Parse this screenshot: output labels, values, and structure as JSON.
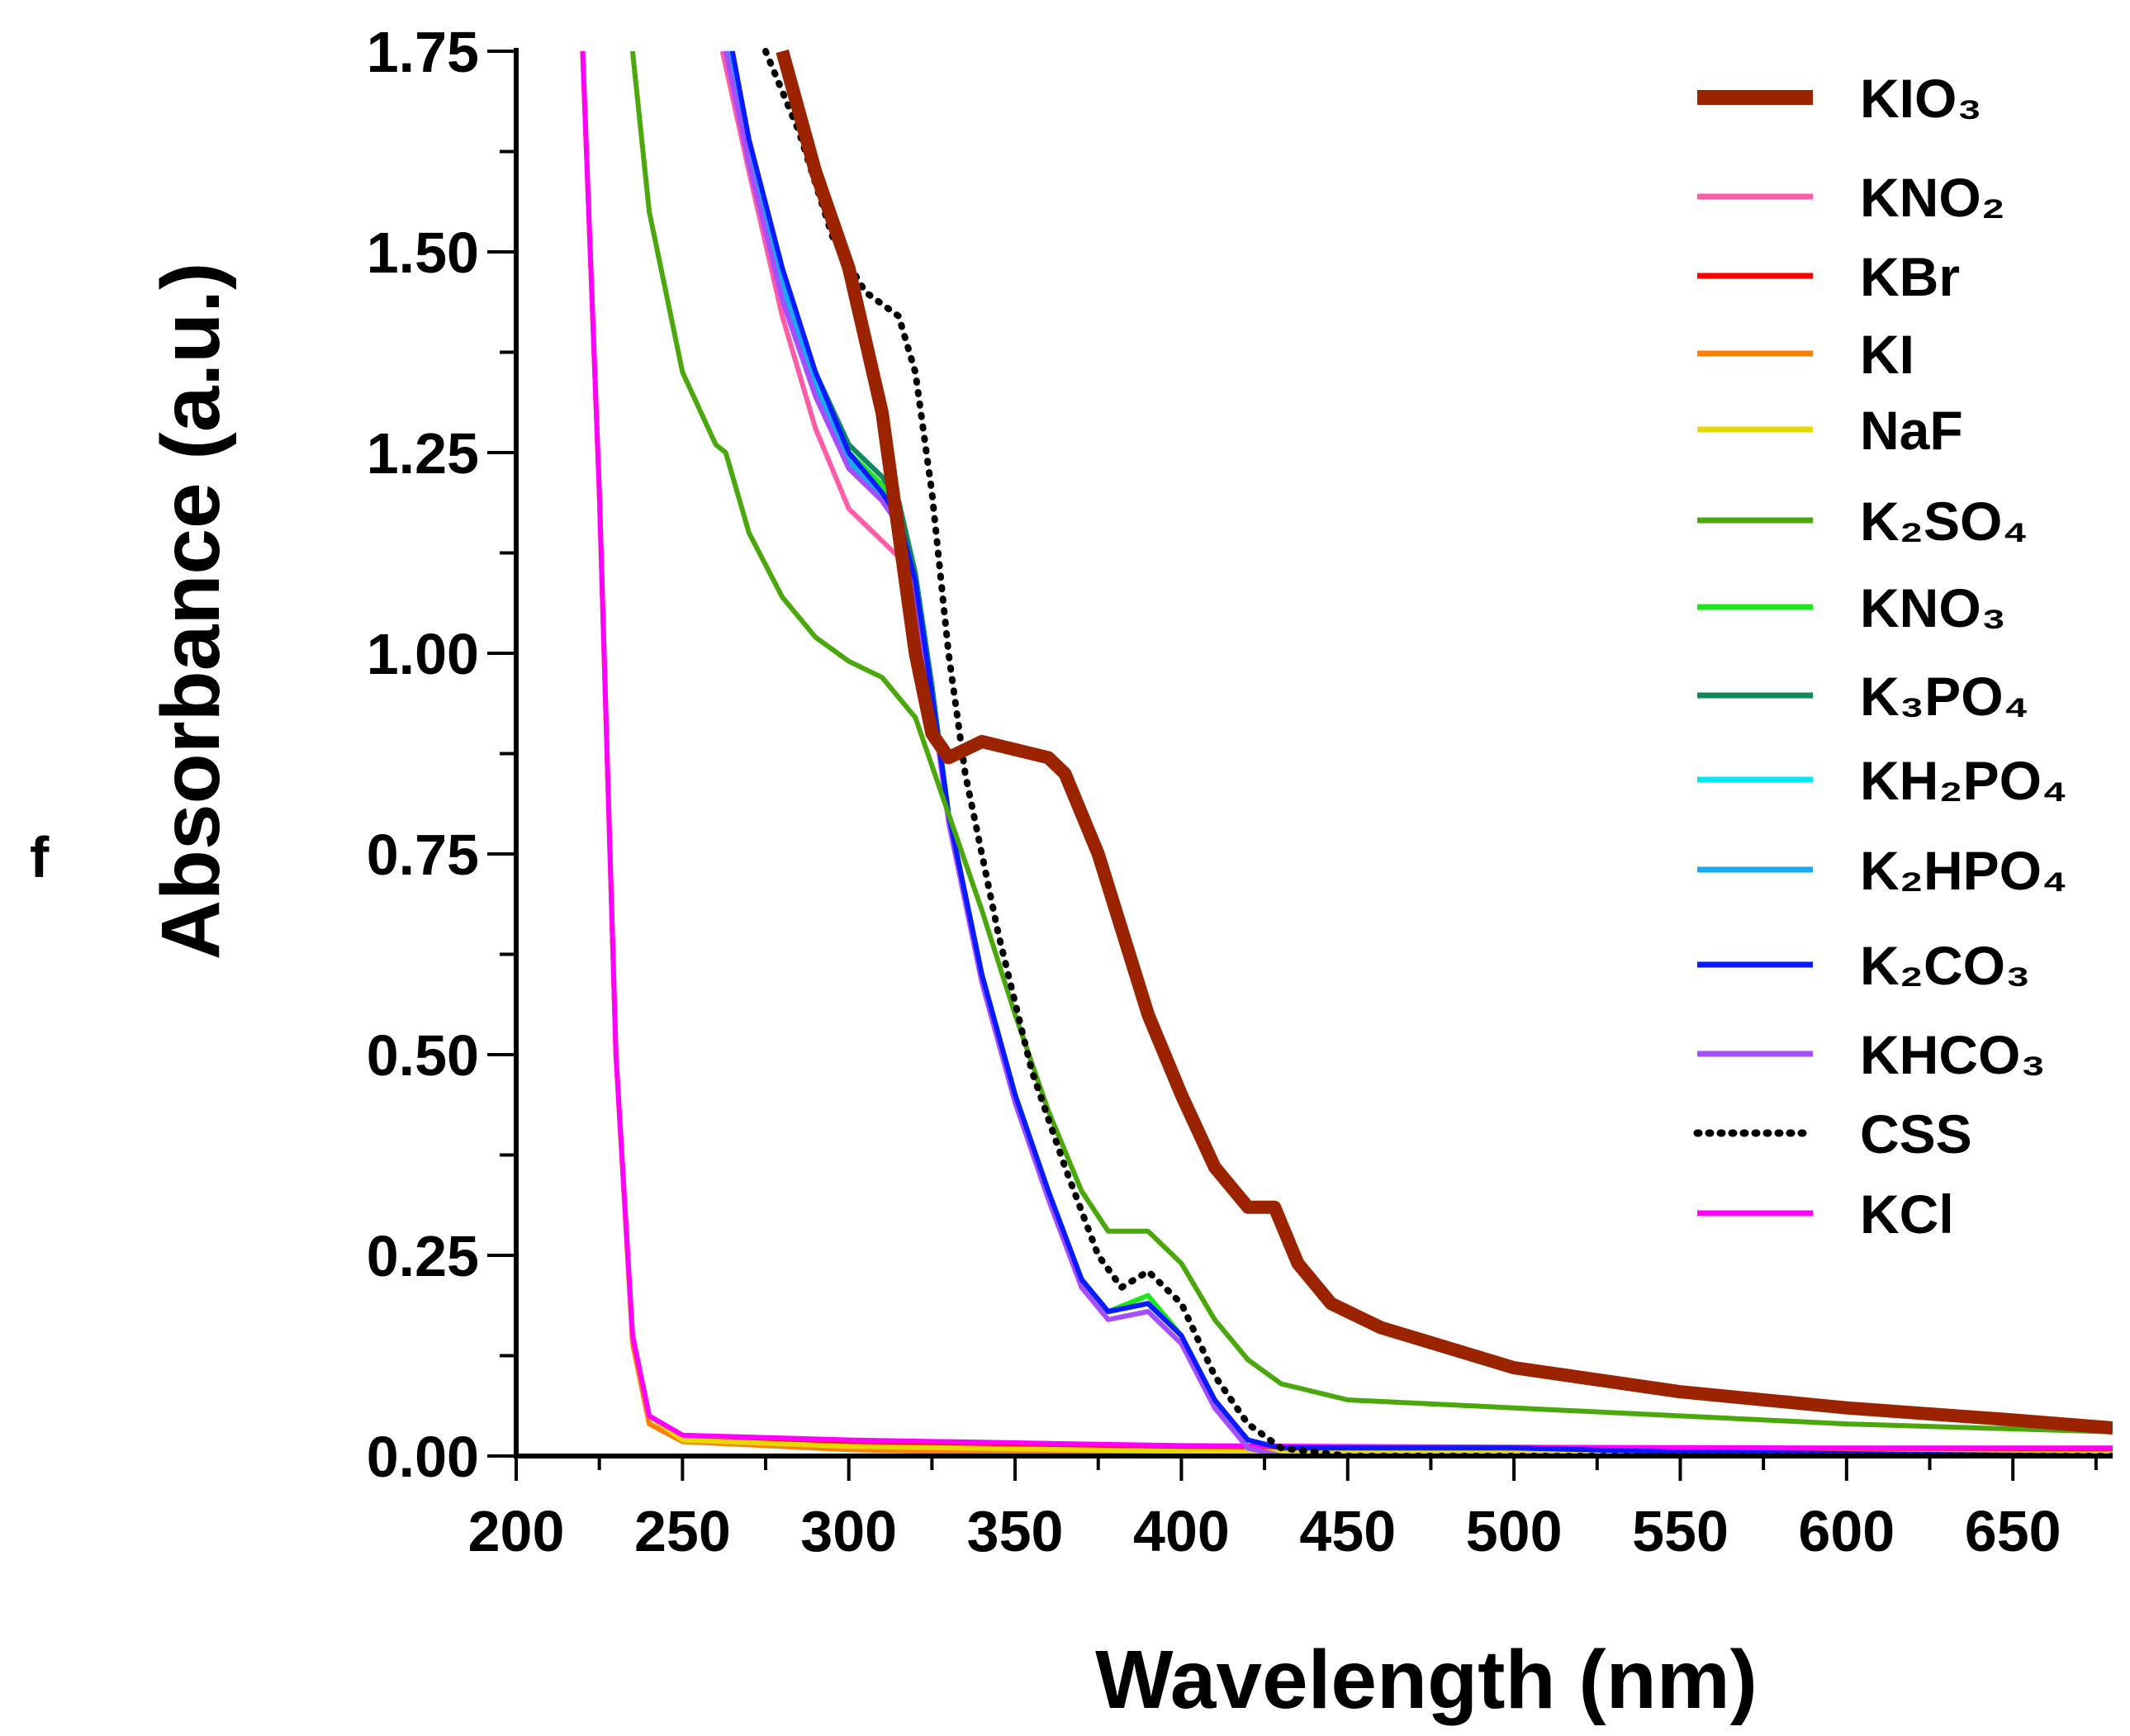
{
  "panel_label": "f",
  "chart_data": {
    "type": "line",
    "xlabel": "Wavelength (nm)",
    "ylabel": "Absorbance (a.u.)",
    "xlim": [
      200,
      680
    ],
    "ylim": [
      0,
      1.75
    ],
    "xticks": [
      "200",
      "250",
      "300",
      "350",
      "400",
      "450",
      "500",
      "550",
      "600",
      "650"
    ],
    "xtick_values": [
      200,
      250,
      300,
      350,
      400,
      450,
      500,
      550,
      600,
      650
    ],
    "yticks": [
      "0.00",
      "0.25",
      "0.50",
      "0.75",
      "1.00",
      "1.25",
      "1.50",
      "1.75"
    ],
    "ytick_values": [
      0,
      0.25,
      0.5,
      0.75,
      1.0,
      1.25,
      1.5,
      1.75
    ],
    "grid": false,
    "legend_position": "top-right",
    "series": [
      {
        "name": "KIO₃",
        "color": "#9b2300",
        "width": "thick",
        "style": "solid",
        "x": [
          280,
          290,
          300,
          310,
          315,
          320,
          325,
          330,
          340,
          350,
          360,
          365,
          375,
          390,
          400,
          410,
          420,
          428,
          435,
          445,
          460,
          500,
          550,
          600,
          650,
          680
        ],
        "y": [
          1.75,
          1.6,
          1.48,
          1.3,
          1.15,
          1.0,
          0.9,
          0.87,
          0.89,
          0.88,
          0.87,
          0.85,
          0.75,
          0.55,
          0.45,
          0.36,
          0.31,
          0.31,
          0.24,
          0.19,
          0.16,
          0.11,
          0.08,
          0.06,
          0.045,
          0.035
        ]
      },
      {
        "name": "KNO₂",
        "color": "#ff5ca8",
        "width": "normal",
        "style": "solid",
        "x": [
          262,
          270,
          280,
          290,
          300,
          310,
          315,
          320,
          325,
          330,
          340,
          350,
          360,
          370,
          378,
          390,
          400,
          410,
          420,
          430,
          680
        ],
        "y": [
          1.75,
          1.6,
          1.42,
          1.28,
          1.18,
          1.14,
          1.12,
          1.05,
          0.95,
          0.8,
          0.6,
          0.45,
          0.33,
          0.22,
          0.18,
          0.19,
          0.15,
          0.07,
          0.01,
          0.0,
          0.0
        ]
      },
      {
        "name": "KBr",
        "color": "#ff0000",
        "width": "normal",
        "style": "solid",
        "x": [
          220,
          225,
          230,
          235,
          240,
          250,
          300,
          400,
          500,
          680
        ],
        "y": [
          1.75,
          1.2,
          0.5,
          0.15,
          0.05,
          0.02,
          0.015,
          0.008,
          0.005,
          0.004
        ]
      },
      {
        "name": "KI",
        "color": "#ff8000",
        "width": "normal",
        "style": "solid",
        "x": [
          220,
          225,
          230,
          235,
          240,
          250,
          300,
          350,
          400,
          450,
          680
        ],
        "y": [
          1.75,
          1.2,
          0.5,
          0.14,
          0.04,
          0.018,
          0.008,
          0.003,
          0.001,
          0.0,
          0.0
        ]
      },
      {
        "name": "NaF",
        "color": "#e6d800",
        "width": "normal",
        "style": "solid",
        "x": [
          220,
          225,
          230,
          235,
          240,
          250,
          300,
          400,
          500,
          680
        ],
        "y": [
          1.75,
          1.2,
          0.5,
          0.15,
          0.05,
          0.02,
          0.012,
          0.006,
          0.004,
          0.003
        ]
      },
      {
        "name": "K₂SO₄",
        "color": "#4aa80c",
        "width": "normal",
        "style": "solid",
        "x": [
          235,
          240,
          250,
          260,
          263,
          270,
          280,
          290,
          300,
          310,
          320,
          330,
          340,
          350,
          360,
          370,
          378,
          390,
          400,
          410,
          420,
          430,
          450,
          500,
          550,
          600,
          680
        ],
        "y": [
          1.75,
          1.55,
          1.35,
          1.26,
          1.25,
          1.15,
          1.07,
          1.02,
          0.99,
          0.97,
          0.92,
          0.8,
          0.68,
          0.55,
          0.43,
          0.33,
          0.28,
          0.28,
          0.24,
          0.17,
          0.12,
          0.09,
          0.07,
          0.06,
          0.05,
          0.04,
          0.03
        ]
      },
      {
        "name": "KNO₃",
        "color": "#1ee61e",
        "width": "normal",
        "style": "solid",
        "x": [
          264,
          270,
          280,
          290,
          300,
          310,
          315,
          320,
          325,
          330,
          340,
          350,
          360,
          370,
          378,
          390,
          400,
          410,
          420,
          430,
          680
        ],
        "y": [
          1.75,
          1.63,
          1.46,
          1.34,
          1.25,
          1.21,
          1.18,
          1.1,
          0.96,
          0.8,
          0.6,
          0.45,
          0.33,
          0.22,
          0.18,
          0.2,
          0.15,
          0.07,
          0.01,
          0.0,
          0.0
        ]
      },
      {
        "name": "K₃PO₄",
        "color": "#0e8a5a",
        "width": "normal",
        "style": "solid",
        "x": [
          264,
          270,
          280,
          290,
          300,
          310,
          315,
          320,
          325,
          330,
          340,
          350,
          360,
          370,
          378,
          390,
          400,
          410,
          420,
          430,
          680
        ],
        "y": [
          1.75,
          1.63,
          1.47,
          1.35,
          1.26,
          1.22,
          1.19,
          1.1,
          0.96,
          0.8,
          0.6,
          0.45,
          0.33,
          0.22,
          0.18,
          0.19,
          0.15,
          0.07,
          0.01,
          0.0,
          0.0
        ]
      },
      {
        "name": "KH₂PO₄",
        "color": "#00e8f0",
        "width": "normal",
        "style": "solid",
        "x": [
          264,
          270,
          280,
          290,
          300,
          310,
          315,
          320,
          325,
          330,
          340,
          350,
          360,
          370,
          378,
          390,
          400,
          410,
          420,
          430,
          680
        ],
        "y": [
          1.75,
          1.62,
          1.46,
          1.34,
          1.25,
          1.2,
          1.17,
          1.09,
          0.95,
          0.8,
          0.6,
          0.45,
          0.33,
          0.22,
          0.18,
          0.19,
          0.15,
          0.07,
          0.01,
          0.0,
          0.0
        ]
      },
      {
        "name": "K₂HPO₄",
        "color": "#1aa8f0",
        "width": "normal",
        "style": "solid",
        "x": [
          264,
          270,
          280,
          290,
          300,
          310,
          315,
          320,
          325,
          330,
          340,
          350,
          360,
          370,
          378,
          390,
          400,
          410,
          420,
          430,
          680
        ],
        "y": [
          1.75,
          1.62,
          1.46,
          1.33,
          1.24,
          1.19,
          1.16,
          1.08,
          0.95,
          0.8,
          0.6,
          0.45,
          0.33,
          0.22,
          0.18,
          0.19,
          0.15,
          0.07,
          0.01,
          0.0,
          0.0
        ]
      },
      {
        "name": "K₂CO₃",
        "color": "#0a1aff",
        "width": "normal",
        "style": "solid",
        "x": [
          265,
          270,
          280,
          290,
          300,
          310,
          315,
          320,
          325,
          330,
          340,
          350,
          360,
          370,
          378,
          390,
          400,
          410,
          420,
          430,
          450,
          500,
          550,
          680
        ],
        "y": [
          1.75,
          1.64,
          1.48,
          1.35,
          1.25,
          1.2,
          1.17,
          1.09,
          0.95,
          0.8,
          0.6,
          0.45,
          0.33,
          0.22,
          0.18,
          0.19,
          0.15,
          0.07,
          0.02,
          0.01,
          0.01,
          0.01,
          0.005,
          0.0
        ]
      },
      {
        "name": "KHCO₃",
        "color": "#a64dff",
        "width": "normal",
        "style": "solid",
        "x": [
          263,
          270,
          280,
          290,
          300,
          310,
          315,
          320,
          325,
          330,
          340,
          350,
          360,
          370,
          378,
          390,
          400,
          410,
          420,
          430,
          680
        ],
        "y": [
          1.75,
          1.61,
          1.44,
          1.32,
          1.23,
          1.19,
          1.16,
          1.07,
          0.94,
          0.79,
          0.59,
          0.44,
          0.32,
          0.21,
          0.17,
          0.18,
          0.14,
          0.06,
          0.01,
          0.0,
          0.0
        ]
      },
      {
        "name": "CSS",
        "color": "#000000",
        "width": "normal",
        "style": "dotted",
        "x": [
          275,
          285,
          295,
          305,
          315,
          320,
          325,
          330,
          335,
          345,
          355,
          365,
          375,
          382,
          390,
          400,
          410,
          420,
          430,
          450,
          680
        ],
        "y": [
          1.75,
          1.65,
          1.52,
          1.45,
          1.42,
          1.35,
          1.2,
          1.0,
          0.85,
          0.65,
          0.48,
          0.36,
          0.25,
          0.21,
          0.23,
          0.19,
          0.1,
          0.04,
          0.01,
          0.0,
          0.0
        ]
      },
      {
        "name": "KCl",
        "color": "#ff00ff",
        "width": "normal",
        "style": "solid",
        "x": [
          220,
          225,
          230,
          235,
          240,
          250,
          300,
          400,
          500,
          600,
          680
        ],
        "y": [
          1.75,
          1.2,
          0.5,
          0.15,
          0.05,
          0.026,
          0.02,
          0.013,
          0.011,
          0.01,
          0.01
        ]
      }
    ]
  }
}
